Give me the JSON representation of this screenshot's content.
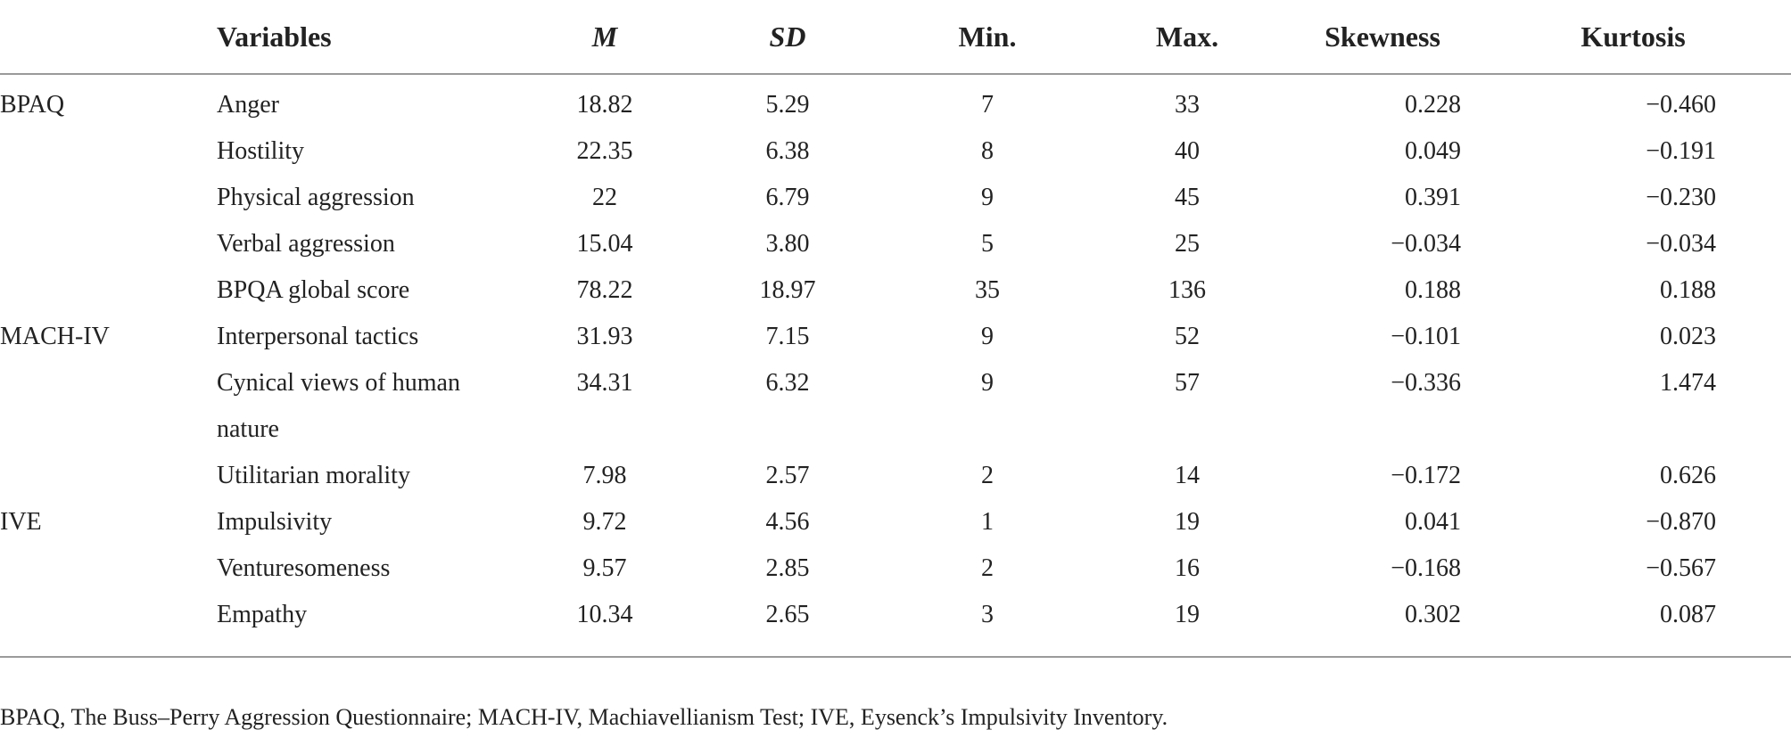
{
  "table": {
    "headers": {
      "group": "",
      "variables": "Variables",
      "m": "M",
      "sd": "SD",
      "min": "Min.",
      "max": "Max.",
      "skewness": "Skewness",
      "kurtosis": "Kurtosis"
    },
    "rows": [
      {
        "group": "BPAQ",
        "variable": "Anger",
        "m": "18.82",
        "sd": "5.29",
        "min": "7",
        "max": "33",
        "skewness": "0.228",
        "kurtosis": "−0.460"
      },
      {
        "group": "",
        "variable": "Hostility",
        "m": "22.35",
        "sd": "6.38",
        "min": "8",
        "max": "40",
        "skewness": "0.049",
        "kurtosis": "−0.191"
      },
      {
        "group": "",
        "variable": "Physical aggression",
        "m": "22",
        "sd": "6.79",
        "min": "9",
        "max": "45",
        "skewness": "0.391",
        "kurtosis": "−0.230"
      },
      {
        "group": "",
        "variable": "Verbal aggression",
        "m": "15.04",
        "sd": "3.80",
        "min": "5",
        "max": "25",
        "skewness": "−0.034",
        "kurtosis": "−0.034"
      },
      {
        "group": "",
        "variable": "BPQA global score",
        "m": "78.22",
        "sd": "18.97",
        "min": "35",
        "max": "136",
        "skewness": "0.188",
        "kurtosis": "0.188"
      },
      {
        "group": "MACH-IV",
        "variable": "Interpersonal tactics",
        "m": "31.93",
        "sd": "7.15",
        "min": "9",
        "max": "52",
        "skewness": "−0.101",
        "kurtosis": "0.023"
      },
      {
        "group": "",
        "variable": "Cynical views of human",
        "m": "34.31",
        "sd": "6.32",
        "min": "9",
        "max": "57",
        "skewness": "−0.336",
        "kurtosis": "1.474"
      },
      {
        "group": "",
        "variable": "nature",
        "m": "",
        "sd": "",
        "min": "",
        "max": "",
        "skewness": "",
        "kurtosis": ""
      },
      {
        "group": "",
        "variable": "Utilitarian morality",
        "m": "7.98",
        "sd": "2.57",
        "min": "2",
        "max": "14",
        "skewness": "−0.172",
        "kurtosis": "0.626"
      },
      {
        "group": "IVE",
        "variable": "Impulsivity",
        "m": "9.72",
        "sd": "4.56",
        "min": "1",
        "max": "19",
        "skewness": "0.041",
        "kurtosis": "−0.870"
      },
      {
        "group": "",
        "variable": "Venturesomeness",
        "m": "9.57",
        "sd": "2.85",
        "min": "2",
        "max": "16",
        "skewness": "−0.168",
        "kurtosis": "−0.567"
      },
      {
        "group": "",
        "variable": "Empathy",
        "m": "10.34",
        "sd": "2.65",
        "min": "3",
        "max": "19",
        "skewness": "0.302",
        "kurtosis": "0.087"
      }
    ]
  },
  "footnote": "BPAQ, The Buss–Perry Aggression Questionnaire; MACH-IV, Machiavellianism Test; IVE, Eysenck’s Impulsivity Inventory."
}
